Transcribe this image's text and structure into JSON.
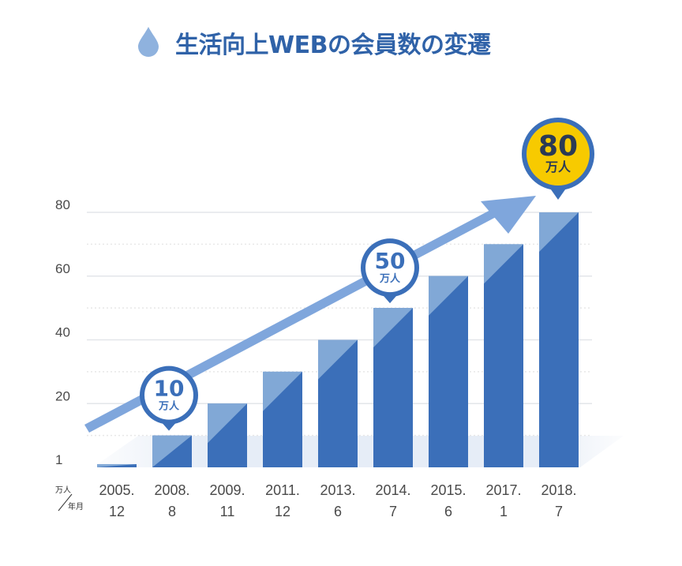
{
  "title": "生活向上WEBの会員数の変遷",
  "colors": {
    "bar": "#3b6fb9",
    "bar_light": "#8aaed9",
    "arrow": "#7fa6dc",
    "pin_border": "#3b6fb9",
    "pin_highlight": "#f7ca00",
    "title": "#2f62a8"
  },
  "unit_top": "万人",
  "unit_bottom": "年月",
  "chart_data": {
    "type": "bar",
    "categories": [
      [
        "2005.",
        "12"
      ],
      [
        "2008.",
        "8"
      ],
      [
        "2009.",
        "11"
      ],
      [
        "2011.",
        "12"
      ],
      [
        "2013.",
        "6"
      ],
      [
        "2014.",
        "7"
      ],
      [
        "2015.",
        "6"
      ],
      [
        "2017.",
        "1"
      ],
      [
        "2018.",
        "7"
      ]
    ],
    "values": [
      1,
      10,
      20,
      30,
      40,
      50,
      60,
      70,
      80
    ],
    "yticks": [
      "1",
      "20",
      "40",
      "60",
      "80"
    ],
    "ylim": [
      0,
      80
    ],
    "grid": true,
    "trend_arrow": true,
    "callouts": [
      {
        "index": 1,
        "number": "10",
        "unit": "万人",
        "highlight": false
      },
      {
        "index": 5,
        "number": "50",
        "unit": "万人",
        "highlight": false
      },
      {
        "index": 8,
        "number": "80",
        "unit": "万人",
        "highlight": true
      }
    ]
  }
}
